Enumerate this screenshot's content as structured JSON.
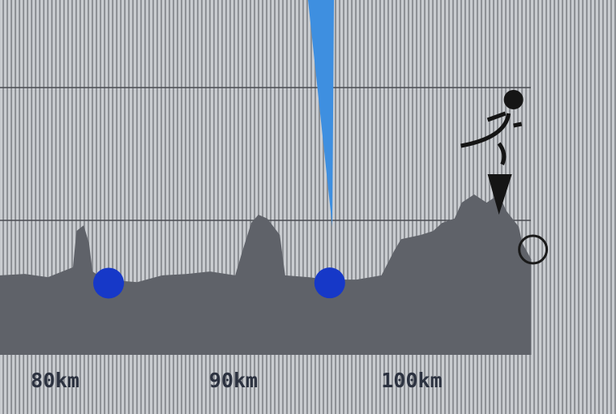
{
  "chart_data": {
    "type": "area",
    "xlabel": "",
    "ylabel": "",
    "x_unit": "km",
    "xlim": [
      76.9,
      111.0
    ],
    "ylim": [
      0,
      100
    ],
    "grid": {
      "horizontal": true,
      "vertical": false,
      "y_values": [
        37.9,
        75.3
      ]
    },
    "x_ticks": [
      {
        "value": 80,
        "label": "80km"
      },
      {
        "value": 90,
        "label": "90km"
      },
      {
        "value": 100,
        "label": "100km"
      }
    ],
    "series": [
      {
        "x": [
          76.9,
          78.3,
          79.6,
          81.0,
          81.2,
          81.6,
          81.9,
          82.1,
          82.8,
          84.6,
          86.0,
          87.4,
          88.7,
          90.1,
          90.5,
          91.0,
          91.4,
          91.9,
          92.6,
          92.9,
          94.2,
          95.3,
          96.9,
          98.3,
          99.0,
          99.4,
          100.5,
          101.2,
          101.7,
          102.4,
          102.8,
          103.5,
          104.2,
          104.9,
          105.3,
          106.0,
          106.2,
          106.7
        ],
        "y": [
          22.4,
          22.8,
          21.9,
          24.7,
          34.9,
          36.5,
          31.5,
          23.5,
          21.2,
          20.5,
          22.4,
          22.8,
          23.5,
          22.4,
          29.2,
          37.2,
          39.5,
          38.4,
          33.8,
          22.4,
          21.9,
          21.2,
          21.2,
          22.4,
          29.2,
          32.6,
          33.8,
          34.9,
          37.2,
          38.4,
          42.9,
          45.2,
          42.9,
          45.2,
          40.6,
          36.1,
          31.5,
          26.9
        ],
        "color": "#5f6269"
      }
    ],
    "markers": [
      {
        "type": "waypoint-dot",
        "x": 83.0,
        "color": "#1638c8"
      },
      {
        "type": "waypoint-dot",
        "x": 95.4,
        "color": "#1638c8"
      },
      {
        "type": "runner-position",
        "x": 104.8,
        "icon": "runner-icon"
      },
      {
        "type": "end-circle",
        "x": 106.8
      }
    ],
    "pointer": {
      "x": 95.0,
      "color": "#3e8fe0"
    }
  }
}
